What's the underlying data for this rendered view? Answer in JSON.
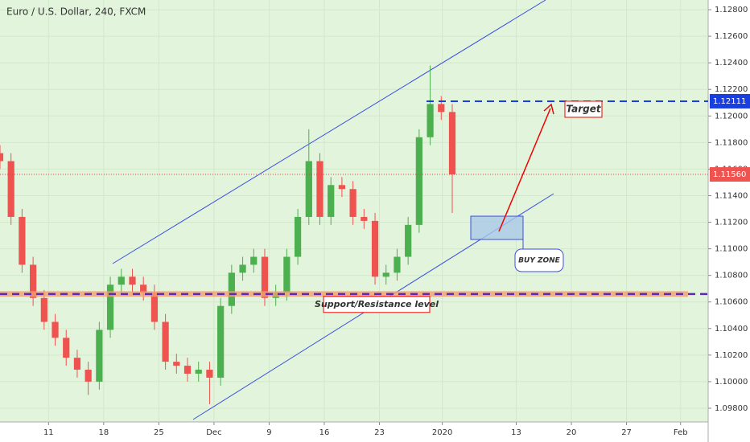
{
  "chart_data": {
    "type": "candlestick",
    "title": "Euro / U.S. Dollar, 240, FXCM",
    "x": [
      0,
      1,
      2,
      3,
      4,
      5,
      6,
      7,
      8,
      9,
      10,
      11,
      12,
      13,
      14,
      15,
      16,
      17,
      18,
      19,
      20,
      21,
      22,
      23,
      24,
      25,
      26,
      27,
      28,
      29,
      30,
      31,
      32,
      33,
      34,
      35,
      36,
      37,
      38,
      39,
      40,
      41
    ],
    "open": [
      1.1172,
      1.1166,
      1.1124,
      1.1088,
      1.1063,
      1.1045,
      1.1033,
      1.1018,
      1.1009,
      1.1,
      1.1039,
      1.1073,
      1.1079,
      1.1073,
      1.1067,
      1.1045,
      1.1015,
      1.1012,
      1.1006,
      1.1009,
      1.1003,
      1.1057,
      1.1082,
      1.1088,
      1.1094,
      1.1063,
      1.1067,
      1.1094,
      1.1124,
      1.1166,
      1.1124,
      1.1148,
      1.1145,
      1.1124,
      1.1121,
      1.1079,
      1.1082,
      1.1094,
      1.1118,
      1.1184,
      1.1209,
      1.1203
    ],
    "high": [
      1.1178,
      1.1172,
      1.113,
      1.1094,
      1.1069,
      1.1051,
      1.1039,
      1.1024,
      1.1015,
      1.1045,
      1.1079,
      1.1085,
      1.1085,
      1.1079,
      1.1073,
      1.1051,
      1.1021,
      1.1018,
      1.1015,
      1.1015,
      1.1063,
      1.1088,
      1.1094,
      1.11,
      1.11,
      1.1073,
      1.11,
      1.113,
      1.119,
      1.1172,
      1.1154,
      1.1154,
      1.1151,
      1.113,
      1.1127,
      1.1088,
      1.11,
      1.1124,
      1.119,
      1.1238,
      1.1215,
      1.1209
    ],
    "low": [
      1.116,
      1.1118,
      1.1082,
      1.1057,
      1.1039,
      1.1027,
      1.1012,
      1.1003,
      1.099,
      1.0994,
      1.1033,
      1.1067,
      1.1067,
      1.1061,
      1.1039,
      1.1009,
      1.1006,
      1.1,
      1.1,
      1.0983,
      1.0997,
      1.1051,
      1.1076,
      1.1082,
      1.1057,
      1.1057,
      1.1061,
      1.1088,
      1.1118,
      1.1118,
      1.1118,
      1.1139,
      1.1118,
      1.1115,
      1.1073,
      1.1073,
      1.1076,
      1.1088,
      1.1112,
      1.1178,
      1.1197,
      1.1127
    ],
    "close": [
      1.1166,
      1.1124,
      1.1088,
      1.1063,
      1.1045,
      1.1033,
      1.1018,
      1.1009,
      1.1,
      1.1039,
      1.1073,
      1.1079,
      1.1073,
      1.1067,
      1.1045,
      1.1015,
      1.1012,
      1.1006,
      1.1009,
      1.1003,
      1.1057,
      1.1082,
      1.1088,
      1.1094,
      1.1063,
      1.1067,
      1.1094,
      1.1124,
      1.1166,
      1.1124,
      1.1148,
      1.1145,
      1.1124,
      1.1121,
      1.1079,
      1.1082,
      1.1094,
      1.1118,
      1.1184,
      1.1209,
      1.1203,
      1.1156
    ],
    "up_color": "#4caf50",
    "down_color": "#ef5350",
    "xlim": [
      0,
      64.2
    ],
    "xticks": [
      {
        "value": 4.4,
        "label": "11"
      },
      {
        "value": 9.4,
        "label": "18"
      },
      {
        "value": 14.4,
        "label": "25"
      },
      {
        "value": 19.4,
        "label": "Dec"
      },
      {
        "value": 24.4,
        "label": "9"
      },
      {
        "value": 29.4,
        "label": "16"
      },
      {
        "value": 34.4,
        "label": "23"
      },
      {
        "value": 40.1,
        "label": "2020"
      },
      {
        "value": 46.8,
        "label": "13"
      },
      {
        "value": 51.8,
        "label": "20"
      },
      {
        "value": 56.8,
        "label": "27"
      },
      {
        "value": 61.7,
        "label": "Feb"
      }
    ],
    "ylim": [
      1.09697,
      1.12873
    ],
    "yticks": [
      {
        "value": 1.128,
        "label": "1.12800"
      },
      {
        "value": 1.126,
        "label": "1.12600"
      },
      {
        "value": 1.124,
        "label": "1.12400"
      },
      {
        "value": 1.122,
        "label": "1.12200"
      },
      {
        "value": 1.12,
        "label": "1.12000"
      },
      {
        "value": 1.118,
        "label": "1.11800"
      },
      {
        "value": 1.116,
        "label": "1.11600"
      },
      {
        "value": 1.114,
        "label": "1.11400"
      },
      {
        "value": 1.112,
        "label": "1.11200"
      },
      {
        "value": 1.11,
        "label": "1.11000"
      },
      {
        "value": 1.108,
        "label": "1.10800"
      },
      {
        "value": 1.106,
        "label": "1.10600"
      },
      {
        "value": 1.104,
        "label": "1.10400"
      },
      {
        "value": 1.102,
        "label": "1.10200"
      },
      {
        "value": 1.1,
        "label": "1.10000"
      },
      {
        "value": 1.098,
        "label": "1.09800"
      }
    ],
    "grid": true,
    "target": {
      "value": 1.12111,
      "label": "1.12111",
      "text": "Target"
    },
    "last_price": {
      "value": 1.1156,
      "label": "1.11560"
    },
    "support": {
      "value": 1.1066,
      "text": "Support/Resistance level"
    },
    "buy_zone": "BUY ZONE"
  }
}
